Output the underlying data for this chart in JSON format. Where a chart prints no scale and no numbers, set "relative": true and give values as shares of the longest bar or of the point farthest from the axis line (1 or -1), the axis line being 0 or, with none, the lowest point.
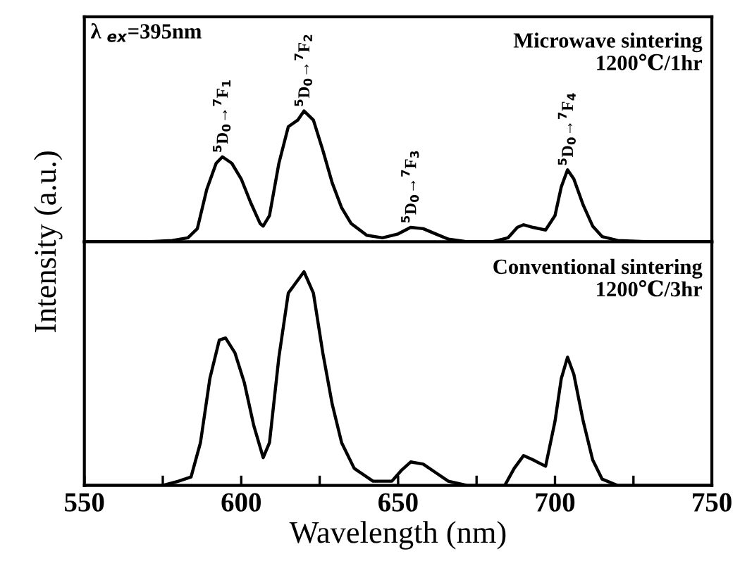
{
  "chart_data": [
    {
      "type": "line",
      "relative": true,
      "tick_labels": false,
      "xlim": [
        550,
        750
      ],
      "annotations": [
        "λ $_{ex}$=395nm",
        "Microwave sintering",
        "1200℃/1hr",
        {
          "text": "$^{5}$D$_{0}$→$^{7}$F$_{1}$",
          "x": 594,
          "y": 0.65
        },
        {
          "text": "$^{5}$D$_{0}$→$^{7}$F$_{2}$",
          "x": 620,
          "y": 1.0
        },
        {
          "text": "$^{5}$D$_{0}$→$^{7}$F$_{3}$",
          "x": 654,
          "y": 0.11
        },
        {
          "text": "$^{5}$D$_{0}$→$^{7}$F$_{4}$",
          "x": 704,
          "y": 0.55
        }
      ],
      "series": [
        {
          "color": "#000000",
          "x": [
            550,
            570,
            578,
            583,
            586,
            589,
            592,
            594,
            597,
            600,
            603,
            606,
            607,
            609,
            612,
            615,
            618,
            620,
            623,
            626,
            629,
            632,
            635,
            640,
            645,
            650,
            654,
            658,
            662,
            666,
            672,
            680,
            685,
            688,
            690,
            693,
            697,
            700,
            702,
            704,
            706,
            709,
            712,
            715,
            720,
            730,
            750
          ],
          "values": [
            0,
            0,
            0.01,
            0.03,
            0.1,
            0.4,
            0.6,
            0.65,
            0.6,
            0.48,
            0.3,
            0.14,
            0.12,
            0.2,
            0.6,
            0.88,
            0.93,
            1.0,
            0.93,
            0.7,
            0.45,
            0.26,
            0.14,
            0.05,
            0.03,
            0.06,
            0.11,
            0.1,
            0.06,
            0.02,
            0,
            0,
            0.03,
            0.11,
            0.13,
            0.11,
            0.09,
            0.2,
            0.42,
            0.55,
            0.48,
            0.28,
            0.12,
            0.04,
            0.01,
            0,
            0
          ]
        }
      ]
    },
    {
      "type": "line",
      "relative": true,
      "tick_labels": "x",
      "xlim": [
        550,
        750
      ],
      "xlabel": "Wavelength (nm)",
      "ylabel": "Intensity (a.u.)",
      "xticks": [
        550,
        {
          "value": 575,
          "label": null
        },
        600,
        {
          "value": 625,
          "label": null
        },
        650,
        {
          "value": 675,
          "label": null
        },
        700,
        {
          "value": 725,
          "label": null
        },
        750
      ],
      "annotations": [
        "Conventional sintering",
        "1200℃/3hr"
      ],
      "series": [
        {
          "color": "#000000",
          "x": [
            550,
            575,
            580,
            584,
            587,
            590,
            593,
            595,
            598,
            601,
            604,
            607,
            609,
            612,
            615,
            617,
            620,
            623,
            626,
            629,
            632,
            636,
            642,
            648,
            651,
            654,
            658,
            662,
            666,
            672,
            684,
            687,
            690,
            693,
            697,
            700,
            702,
            704,
            706,
            709,
            712,
            715,
            720,
            750
          ],
          "values": [
            0,
            0,
            0.02,
            0.04,
            0.2,
            0.5,
            0.68,
            0.69,
            0.62,
            0.48,
            0.28,
            0.13,
            0.2,
            0.6,
            0.9,
            0.94,
            1.0,
            0.9,
            0.62,
            0.38,
            0.2,
            0.08,
            0.02,
            0.02,
            0.07,
            0.11,
            0.1,
            0.06,
            0.02,
            0,
            0,
            0.08,
            0.14,
            0.12,
            0.09,
            0.3,
            0.5,
            0.6,
            0.52,
            0.3,
            0.12,
            0.03,
            0,
            0
          ]
        }
      ]
    }
  ]
}
